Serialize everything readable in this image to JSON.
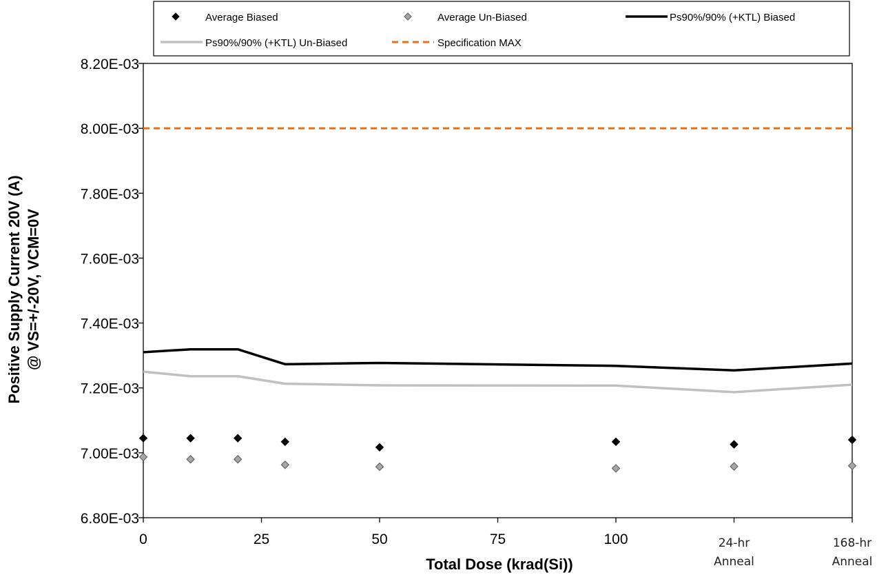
{
  "chart_data": {
    "type": "line",
    "title": "",
    "xlabel": "Total Dose (krad(Si))",
    "ylabel_lines": [
      "Positive Supply Current 20V (A)",
      "@ VS=+/-20V, VCM=0V"
    ],
    "x_ticks": [
      {
        "value": 0,
        "label": "0"
      },
      {
        "value": 25,
        "label": "25"
      },
      {
        "value": 50,
        "label": "50"
      },
      {
        "value": 75,
        "label": "75"
      },
      {
        "value": 100,
        "label": "100"
      },
      {
        "value": 125,
        "label": "24-hr",
        "label2": "Anneal"
      },
      {
        "value": 150,
        "label": "168-hr",
        "label2": "Anneal"
      }
    ],
    "xlim": [
      0,
      150
    ],
    "ylim": [
      0.0068,
      0.0082
    ],
    "y_ticks": [
      {
        "value": 0.0068,
        "label": "6.80E-03"
      },
      {
        "value": 0.007,
        "label": "7.00E-03"
      },
      {
        "value": 0.0072,
        "label": "7.20E-03"
      },
      {
        "value": 0.0074,
        "label": "7.40E-03"
      },
      {
        "value": 0.0076,
        "label": "7.60E-03"
      },
      {
        "value": 0.0078,
        "label": "7.80E-03"
      },
      {
        "value": 0.008,
        "label": "8.00E-03"
      },
      {
        "value": 0.0082,
        "label": "8.20E-03"
      }
    ],
    "grid": false,
    "legend_position": "top",
    "series": [
      {
        "name": "Average Biased",
        "kind": "marker",
        "color": "#000000",
        "x": [
          0,
          10,
          20,
          30,
          50,
          100,
          125,
          150
        ],
        "y": [
          0.007045,
          0.007045,
          0.007045,
          0.007034,
          0.007017,
          0.007034,
          0.007026,
          0.00704
        ]
      },
      {
        "name": "Average Un-Biased",
        "kind": "marker",
        "color": "#a6a6a6",
        "x": [
          0,
          10,
          20,
          30,
          50,
          100,
          125,
          150
        ],
        "y": [
          0.006987,
          0.00698,
          0.00698,
          0.006963,
          0.006957,
          0.006952,
          0.006958,
          0.00696
        ]
      },
      {
        "name": "Ps90%/90% (+KTL) Biased",
        "kind": "line",
        "color": "#000000",
        "x": [
          0,
          10,
          20,
          30,
          50,
          100,
          125,
          150
        ],
        "y": [
          0.00731,
          0.007319,
          0.007319,
          0.007273,
          0.007277,
          0.007268,
          0.007254,
          0.007275
        ]
      },
      {
        "name": "Ps90%/90% (+KTL) Un-Biased",
        "kind": "line",
        "color": "#c0c0c0",
        "x": [
          0,
          10,
          20,
          30,
          50,
          100,
          125,
          150
        ],
        "y": [
          0.00725,
          0.007236,
          0.007236,
          0.007213,
          0.007208,
          0.007207,
          0.007187,
          0.00721
        ]
      },
      {
        "name": "Specification MAX",
        "kind": "dashed",
        "color": "#f26b0f",
        "x": [
          0,
          150
        ],
        "y": [
          0.008,
          0.008
        ]
      }
    ]
  }
}
